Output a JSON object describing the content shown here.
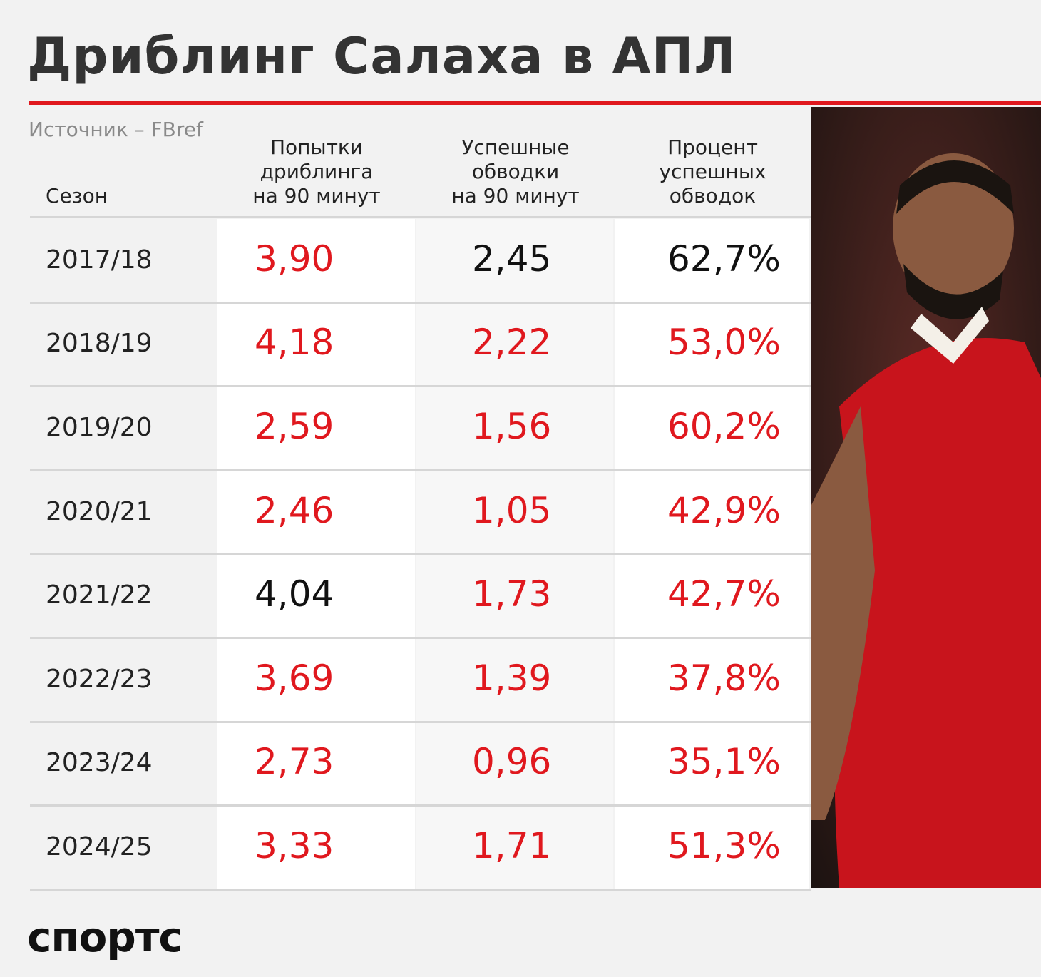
{
  "header": {
    "title": "Дриблинг Салаха в АПЛ",
    "source": "Источник – FBref"
  },
  "table": {
    "columns": [
      [
        "Сезон"
      ],
      [
        "Попытки",
        "дриблинга",
        "на 90 минут"
      ],
      [
        "Успешные",
        "обводки",
        "на 90 минут"
      ],
      [
        "Процент",
        "успешных",
        "обводок"
      ]
    ],
    "rows": [
      {
        "season": "2017/18",
        "cells": [
          {
            "text": "3,90",
            "color": "#e0181e"
          },
          {
            "text": "2,45",
            "color": "#111111"
          },
          {
            "text": "62,7%",
            "color": "#111111"
          }
        ]
      },
      {
        "season": "2018/19",
        "cells": [
          {
            "text": "4,18",
            "color": "#e0181e"
          },
          {
            "text": "2,22",
            "color": "#e0181e"
          },
          {
            "text": "53,0%",
            "color": "#e0181e"
          }
        ]
      },
      {
        "season": "2019/20",
        "cells": [
          {
            "text": "2,59",
            "color": "#e0181e"
          },
          {
            "text": "1,56",
            "color": "#e0181e"
          },
          {
            "text": "60,2%",
            "color": "#e0181e"
          }
        ]
      },
      {
        "season": "2020/21",
        "cells": [
          {
            "text": "2,46",
            "color": "#e0181e"
          },
          {
            "text": "1,05",
            "color": "#e0181e"
          },
          {
            "text": "42,9%",
            "color": "#e0181e"
          }
        ]
      },
      {
        "season": "2021/22",
        "cells": [
          {
            "text": "4,04",
            "color": "#111111"
          },
          {
            "text": "1,73",
            "color": "#e0181e"
          },
          {
            "text": "42,7%",
            "color": "#e0181e"
          }
        ]
      },
      {
        "season": "2022/23",
        "cells": [
          {
            "text": "3,69",
            "color": "#e0181e"
          },
          {
            "text": "1,39",
            "color": "#e0181e"
          },
          {
            "text": "37,8%",
            "color": "#e0181e"
          }
        ]
      },
      {
        "season": "2023/24",
        "cells": [
          {
            "text": "2,73",
            "color": "#e0181e"
          },
          {
            "text": "0,96",
            "color": "#e0181e"
          },
          {
            "text": "35,1%",
            "color": "#e0181e"
          }
        ]
      },
      {
        "season": "2024/25",
        "cells": [
          {
            "text": "3,33",
            "color": "#e0181e"
          },
          {
            "text": "1,71",
            "color": "#e0181e"
          },
          {
            "text": "51,3%",
            "color": "#e0181e"
          }
        ]
      }
    ]
  },
  "footer": {
    "logo": "спортс"
  }
}
